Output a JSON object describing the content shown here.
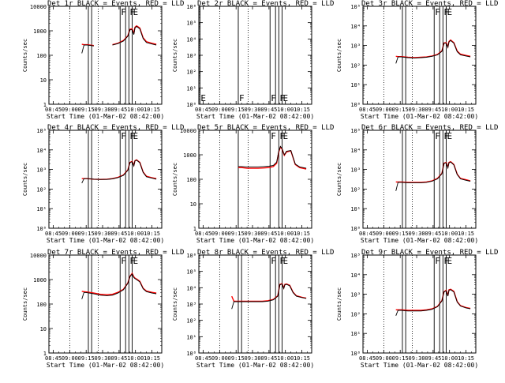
{
  "figure": {
    "x_tick_labels": [
      "08:45",
      "09:00",
      "09:15",
      "09:30",
      "09:45",
      "10:00",
      "10:15"
    ],
    "x_tick_values_min": [
      525,
      540,
      555,
      570,
      585,
      600,
      615
    ],
    "x_range_min": [
      521,
      624
    ],
    "xlabel": "Start Time (01-Mar-02 08:42:00)",
    "ylabel": "Counts/sec",
    "colors": {
      "events": "#000000",
      "lld": "#ff0000"
    },
    "legend_note": "BLACK = Events, RED = LLD"
  },
  "chart_data": [
    {
      "type": "line",
      "title": "Det 1r BLACK = Events, RED = LLD",
      "scale": "log",
      "ylim": [
        1,
        10000
      ],
      "ytick_style": "plain",
      "ytick_labels": [
        "1",
        "10",
        "100",
        "1000",
        "10000"
      ],
      "series": [
        {
          "name": "Events"
        },
        {
          "name": "LLD"
        }
      ],
      "x": [
        551,
        553,
        556,
        562,
        568,
        574,
        579,
        584,
        589,
        593,
        595,
        597,
        598.5,
        599.5,
        601,
        604,
        607,
        610,
        615,
        619
      ],
      "events": [
        120,
        260,
        260,
        240,
        230,
        240,
        260,
        300,
        380,
        600,
        1100,
        1100,
        700,
        1300,
        1500,
        1200,
        480,
        330,
        290,
        260
      ],
      "lld": [
        280,
        270,
        270,
        250,
        240,
        250,
        270,
        310,
        400,
        620,
        1150,
        1200,
        760,
        1400,
        1600,
        1300,
        520,
        360,
        310,
        280
      ],
      "event_start": 551,
      "gaps": [
        [
          566,
          575
        ]
      ],
      "dotted_lines": [
        540,
        566
      ],
      "markers": [
        {
          "x": 557,
          "label": ""
        },
        {
          "x": 560,
          "label": ""
        },
        {
          "x": 586,
          "label": "F"
        },
        {
          "x": 591,
          "label": ""
        },
        {
          "x": 594,
          "label": "F"
        },
        {
          "x": 597,
          "label": "E"
        }
      ]
    },
    {
      "type": "line",
      "title": "Det 2r BLACK = Events, RED = LLD",
      "scale": "log",
      "ylim": [
        1,
        1000000
      ],
      "ytick_style": "sci",
      "ytick_labels": [
        "10⁰",
        "10¹",
        "10²",
        "10³",
        "10⁴",
        "10⁵",
        "10⁶"
      ],
      "series": [
        {
          "name": "Events"
        },
        {
          "name": "LLD"
        }
      ],
      "x": [],
      "events": [],
      "lld": [],
      "event_start": null,
      "gaps": [],
      "dotted_lines": [
        540,
        566
      ],
      "markers": [
        {
          "x": 522,
          "label": "E"
        },
        {
          "x": 557,
          "label": "F"
        },
        {
          "x": 586,
          "label": "F"
        },
        {
          "x": 591,
          "label": ""
        },
        {
          "x": 594,
          "label": "F"
        },
        {
          "x": 597,
          "label": "E"
        }
      ]
    },
    {
      "type": "line",
      "title": "Det 3r BLACK = Events, RED = LLD",
      "scale": "log",
      "ylim": [
        1,
        100000
      ],
      "ytick_style": "sci",
      "ytick_labels": [
        "10⁰",
        "10¹",
        "10²",
        "10³",
        "10⁴",
        "10⁵"
      ],
      "series": [
        {
          "name": "Events"
        },
        {
          "name": "LLD"
        }
      ],
      "x": [
        551,
        553,
        556,
        562,
        568,
        574,
        579,
        584,
        589,
        593,
        595,
        597,
        598.5,
        599.5,
        601,
        604,
        607,
        610,
        615,
        619
      ],
      "events": [
        120,
        260,
        260,
        240,
        230,
        240,
        250,
        280,
        330,
        500,
        1300,
        1300,
        800,
        1500,
        1800,
        1300,
        480,
        330,
        290,
        260
      ],
      "lld": [
        280,
        270,
        270,
        250,
        240,
        250,
        260,
        290,
        350,
        520,
        1350,
        1400,
        850,
        1600,
        1900,
        1400,
        520,
        360,
        310,
        280
      ],
      "event_start": 551,
      "gaps": [],
      "dotted_lines": [
        540,
        566
      ],
      "markers": [
        {
          "x": 557,
          "label": ""
        },
        {
          "x": 560,
          "label": ""
        },
        {
          "x": 586,
          "label": "F"
        },
        {
          "x": 591,
          "label": ""
        },
        {
          "x": 594,
          "label": "F"
        },
        {
          "x": 597,
          "label": "E"
        }
      ]
    },
    {
      "type": "line",
      "title": "Det 4r BLACK = Events, RED = LLD",
      "scale": "log",
      "ylim": [
        1,
        100000
      ],
      "ytick_style": "sci",
      "ytick_labels": [
        "10⁰",
        "10¹",
        "10²",
        "10³",
        "10⁴",
        "10⁵"
      ],
      "series": [
        {
          "name": "Events"
        },
        {
          "name": "LLD"
        }
      ],
      "x": [
        551,
        553,
        556,
        562,
        568,
        574,
        579,
        584,
        589,
        593,
        595,
        597,
        598.5,
        599.5,
        601,
        604,
        607,
        610,
        615,
        619
      ],
      "events": [
        200,
        340,
        340,
        320,
        310,
        310,
        330,
        380,
        500,
        900,
        2200,
        2500,
        1500,
        2700,
        3000,
        2200,
        700,
        420,
        360,
        320
      ],
      "lld": [
        340,
        340,
        340,
        320,
        310,
        320,
        340,
        400,
        520,
        950,
        2300,
        2600,
        1600,
        2800,
        3100,
        2300,
        740,
        450,
        380,
        340
      ],
      "event_start": 551,
      "gaps": [],
      "dotted_lines": [
        540,
        566
      ],
      "markers": [
        {
          "x": 557,
          "label": ""
        },
        {
          "x": 560,
          "label": ""
        },
        {
          "x": 586,
          "label": "F"
        },
        {
          "x": 591,
          "label": ""
        },
        {
          "x": 594,
          "label": "F"
        },
        {
          "x": 597,
          "label": "E"
        }
      ]
    },
    {
      "type": "line",
      "title": "Det 5r BLACK = Events, RED = LLD",
      "scale": "log",
      "ylim": [
        1,
        10000
      ],
      "ytick_style": "plain",
      "ytick_labels": [
        "1",
        "10",
        "100",
        "1000",
        "10000"
      ],
      "series": [
        {
          "name": "Events"
        },
        {
          "name": "LLD"
        }
      ],
      "x": [
        557,
        560,
        565,
        570,
        575,
        580,
        585,
        589,
        592,
        594,
        595.5,
        597,
        599,
        601,
        605,
        609,
        613,
        619
      ],
      "events": [
        330,
        330,
        320,
        320,
        320,
        330,
        340,
        370,
        500,
        1400,
        2200,
        1800,
        1000,
        1400,
        1500,
        420,
        320,
        280
      ],
      "lld": [
        300,
        300,
        280,
        280,
        280,
        290,
        300,
        330,
        450,
        1300,
        2100,
        1700,
        950,
        1300,
        1450,
        400,
        300,
        260
      ],
      "event_start": 557,
      "gaps": [],
      "dotted_lines": [
        540,
        566
      ],
      "markers": [
        {
          "x": 557,
          "label": ""
        },
        {
          "x": 586,
          "label": "F"
        },
        {
          "x": 594,
          "label": "F"
        },
        {
          "x": 597,
          "label": "E"
        }
      ]
    },
    {
      "type": "line",
      "title": "Det 6r BLACK = Events, RED = LLD",
      "scale": "log",
      "ylim": [
        1,
        100000
      ],
      "ytick_style": "sci",
      "ytick_labels": [
        "10⁰",
        "10¹",
        "10²",
        "10³",
        "10⁴",
        "10⁵"
      ],
      "series": [
        {
          "name": "Events"
        },
        {
          "name": "LLD"
        }
      ],
      "x": [
        551,
        553,
        556,
        562,
        568,
        574,
        579,
        584,
        589,
        593,
        595,
        597,
        598.5,
        599.5,
        601,
        604,
        607,
        610,
        615,
        619
      ],
      "events": [
        80,
        220,
        220,
        210,
        210,
        210,
        220,
        250,
        330,
        600,
        2000,
        2200,
        1200,
        2200,
        2400,
        1700,
        550,
        330,
        280,
        250
      ],
      "lld": [
        230,
        230,
        230,
        220,
        220,
        220,
        230,
        260,
        350,
        620,
        2100,
        2300,
        1300,
        2300,
        2500,
        1800,
        580,
        350,
        300,
        260
      ],
      "event_start": 551,
      "gaps": [],
      "dotted_lines": [
        540,
        566
      ],
      "markers": [
        {
          "x": 557,
          "label": ""
        },
        {
          "x": 560,
          "label": ""
        },
        {
          "x": 586,
          "label": "F"
        },
        {
          "x": 591,
          "label": ""
        },
        {
          "x": 594,
          "label": "F"
        },
        {
          "x": 597,
          "label": "E"
        }
      ]
    },
    {
      "type": "line",
      "title": "Det 7r BLACK = Events, RED = LLD",
      "scale": "log",
      "ylim": [
        1,
        10000
      ],
      "ytick_style": "plain",
      "ytick_labels": [
        "1",
        "10",
        "100",
        "1000",
        "10000"
      ],
      "series": [
        {
          "name": "Events"
        },
        {
          "name": "LLD"
        }
      ],
      "x": [
        551,
        553,
        556,
        562,
        568,
        574,
        579,
        584,
        589,
        593,
        595,
        597,
        598.5,
        599.5,
        601,
        604,
        607,
        610,
        615,
        619
      ],
      "events": [
        160,
        300,
        290,
        260,
        230,
        220,
        230,
        280,
        380,
        700,
        1300,
        1700,
        1200,
        1100,
        1000,
        800,
        420,
        320,
        280,
        260
      ],
      "lld": [
        330,
        320,
        310,
        280,
        250,
        240,
        250,
        300,
        400,
        720,
        1350,
        1800,
        1300,
        1150,
        1050,
        850,
        440,
        340,
        300,
        280
      ],
      "event_start": 551,
      "gaps": [],
      "dotted_lines": [
        540,
        566
      ],
      "markers": [
        {
          "x": 557,
          "label": ""
        },
        {
          "x": 560,
          "label": ""
        },
        {
          "x": 586,
          "label": "F"
        },
        {
          "x": 591,
          "label": ""
        },
        {
          "x": 594,
          "label": "F"
        },
        {
          "x": 597,
          "label": "E"
        }
      ]
    },
    {
      "type": "line",
      "title": "Det 8r BLACK = Events, RED = LLD",
      "scale": "log",
      "ylim": [
        1,
        1000000
      ],
      "ytick_style": "sci",
      "ytick_labels": [
        "10⁰",
        "10¹",
        "10²",
        "10³",
        "10⁴",
        "10⁵",
        "10⁶"
      ],
      "series": [
        {
          "name": "Events"
        },
        {
          "name": "LLD"
        }
      ],
      "x": [
        551,
        553,
        556,
        562,
        568,
        574,
        579,
        584,
        589,
        593,
        595,
        597,
        598.5,
        599.5,
        601,
        604,
        607,
        610,
        615,
        619
      ],
      "events": [
        500,
        1400,
        1400,
        1400,
        1400,
        1400,
        1400,
        1500,
        1800,
        3000,
        15000,
        17000,
        9000,
        15000,
        16000,
        13000,
        5000,
        3000,
        2500,
        2200
      ],
      "lld": [
        3000,
        1500,
        1500,
        1500,
        1500,
        1500,
        1500,
        1600,
        1900,
        3200,
        16000,
        18000,
        9500,
        16000,
        17000,
        14000,
        5300,
        3200,
        2600,
        2300
      ],
      "event_start": 551,
      "gaps": [],
      "dotted_lines": [
        540,
        566
      ],
      "markers": [
        {
          "x": 557,
          "label": ""
        },
        {
          "x": 560,
          "label": ""
        },
        {
          "x": 586,
          "label": "F"
        },
        {
          "x": 591,
          "label": ""
        },
        {
          "x": 594,
          "label": "F"
        },
        {
          "x": 597,
          "label": "E"
        }
      ]
    },
    {
      "type": "line",
      "title": "Det 9r BLACK = Events, RED = LLD",
      "scale": "log",
      "ylim": [
        1,
        100000
      ],
      "ytick_style": "sci",
      "ytick_labels": [
        "10⁰",
        "10¹",
        "10²",
        "10³",
        "10⁴",
        "10⁵"
      ],
      "series": [
        {
          "name": "Events"
        },
        {
          "name": "LLD"
        }
      ],
      "x": [
        551,
        553,
        556,
        562,
        568,
        574,
        579,
        584,
        589,
        593,
        595,
        597,
        598.5,
        599.5,
        601,
        604,
        607,
        610,
        615,
        619
      ],
      "events": [
        80,
        150,
        150,
        140,
        140,
        140,
        150,
        170,
        230,
        450,
        1300,
        1500,
        800,
        1600,
        1700,
        1300,
        400,
        250,
        200,
        180
      ],
      "lld": [
        160,
        160,
        160,
        150,
        150,
        150,
        160,
        180,
        240,
        470,
        1350,
        1600,
        850,
        1700,
        1800,
        1400,
        420,
        260,
        210,
        190
      ],
      "event_start": 551,
      "gaps": [],
      "dotted_lines": [
        540,
        566
      ],
      "markers": [
        {
          "x": 557,
          "label": ""
        },
        {
          "x": 560,
          "label": ""
        },
        {
          "x": 586,
          "label": "F"
        },
        {
          "x": 591,
          "label": ""
        },
        {
          "x": 594,
          "label": "F"
        },
        {
          "x": 597,
          "label": "E"
        }
      ]
    }
  ]
}
